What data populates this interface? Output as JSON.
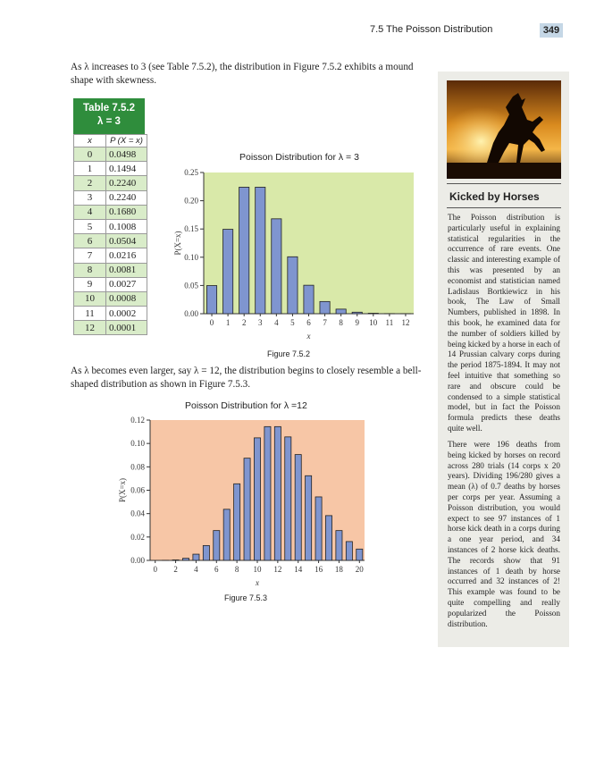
{
  "header": {
    "section": "7.5   The Poisson Distribution",
    "page_number": "349"
  },
  "intro_text": "As λ increases to 3 (see Table 7.5.2), the distribution in Figure 7.5.2 exhibits a mound shape with skewness.",
  "table": {
    "title_line1": "Table 7.5.2",
    "title_line2": "λ = 3",
    "col_x": "x",
    "col_p": "P (X = x)",
    "rows": [
      {
        "x": "0",
        "p": "0.0498"
      },
      {
        "x": "1",
        "p": "0.1494"
      },
      {
        "x": "2",
        "p": "0.2240"
      },
      {
        "x": "3",
        "p": "0.2240"
      },
      {
        "x": "4",
        "p": "0.1680"
      },
      {
        "x": "5",
        "p": "0.1008"
      },
      {
        "x": "6",
        "p": "0.0504"
      },
      {
        "x": "7",
        "p": "0.0216"
      },
      {
        "x": "8",
        "p": "0.0081"
      },
      {
        "x": "9",
        "p": "0.0027"
      },
      {
        "x": "10",
        "p": "0.0008"
      },
      {
        "x": "11",
        "p": "0.0002"
      },
      {
        "x": "12",
        "p": "0.0001"
      }
    ]
  },
  "figure1": {
    "title": "Poisson Distribution for λ = 3",
    "caption": "Figure 7.5.2"
  },
  "middle_text": "As λ becomes even larger, say λ = 12, the distribution begins to closely resemble a bell-shaped distribution as shown in Figure 7.5.3.",
  "figure2": {
    "title": "Poisson Distribution for λ =12",
    "caption": "Figure 7.5.3"
  },
  "chart_data": [
    {
      "type": "bar",
      "title": "Poisson Distribution for λ = 3",
      "xlabel": "x",
      "ylabel": "P(X=x)",
      "categories": [
        "0",
        "1",
        "2",
        "3",
        "4",
        "5",
        "6",
        "7",
        "8",
        "9",
        "10",
        "11",
        "12"
      ],
      "values": [
        0.0498,
        0.1494,
        0.224,
        0.224,
        0.168,
        0.1008,
        0.0504,
        0.0216,
        0.0081,
        0.0027,
        0.0008,
        0.0002,
        0.0001
      ],
      "ylim": [
        0,
        0.25
      ],
      "yticks": [
        "0.00",
        "0.05",
        "0.10",
        "0.15",
        "0.20",
        "0.25"
      ],
      "xticks": [
        "0",
        "1",
        "2",
        "3",
        "4",
        "5",
        "6",
        "7",
        "8",
        "9",
        "10",
        "11",
        "12"
      ],
      "bar_color": "#7f95cf",
      "background": "#d9e9a9"
    },
    {
      "type": "bar",
      "title": "Poisson Distribution for λ =12",
      "xlabel": "x",
      "ylabel": "P(X=x)",
      "categories": [
        "0",
        "1",
        "2",
        "3",
        "4",
        "5",
        "6",
        "7",
        "8",
        "9",
        "10",
        "11",
        "12",
        "13",
        "14",
        "15",
        "16",
        "17",
        "18",
        "19",
        "20"
      ],
      "values": [
        0.0,
        0.0001,
        0.0004,
        0.0018,
        0.0053,
        0.0127,
        0.0255,
        0.0437,
        0.0655,
        0.0874,
        0.1048,
        0.1144,
        0.1144,
        0.1056,
        0.0905,
        0.0724,
        0.0543,
        0.0383,
        0.0255,
        0.0161,
        0.0097
      ],
      "ylim": [
        0,
        0.12
      ],
      "yticks": [
        "0.00",
        "0.02",
        "0.04",
        "0.06",
        "0.08",
        "0.10",
        "0.12"
      ],
      "xticks": [
        "0",
        "2",
        "4",
        "6",
        "8",
        "10",
        "12",
        "14",
        "16",
        "18",
        "20"
      ],
      "bar_color": "#7f95cf",
      "background": "#f7c6a6"
    }
  ],
  "sidebar": {
    "title": "Kicked by Horses",
    "para1": "The Poisson distribution is particularly useful in explaining statistical regularities in the occurrence of rare events. One classic and interesting example of this was presented by an economist and statistician named Ladislaus Bortkiewicz in his book, The Law of Small Numbers, published in 1898. In this book, he examined data for the number of soldiers killed by being kicked by a horse in each of 14 Prussian calvary corps during the period 1875-1894. It may not feel intuitive that something so rare and obscure could be condensed to a simple statistical model, but in fact the Poisson formula predicts these deaths quite well.",
    "para2": "There were 196 deaths from being kicked by horses on record across 280 trials (14 corps x 20 years). Dividing 196/280 gives a mean (λ) of 0.7 deaths by horses per corps per year. Assuming a Poisson distribution, you would expect to see 97 instances of 1 horse kick death in a corps during a one year period, and 34 instances of 2 horse kick deaths. The records show that 91 instances of 1 death by horse occurred and 32 instances of 2! This example was found to be quite compelling and really popularized the Poisson distribution."
  }
}
